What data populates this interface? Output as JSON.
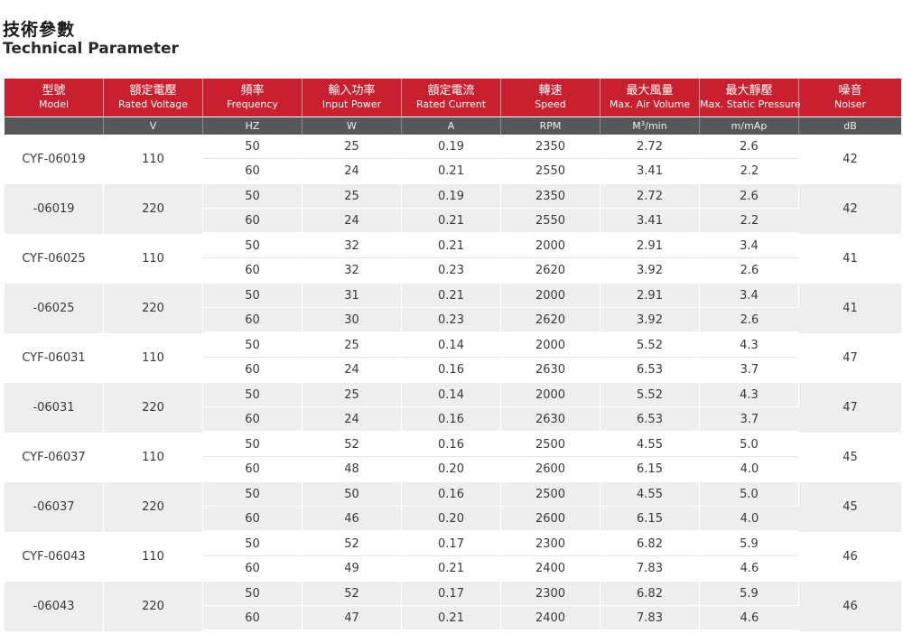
{
  "title_zh": "技術參數",
  "title_en": "Technical Parameter",
  "headers": [
    {
      "zh": "型號",
      "en": "Model"
    },
    {
      "zh": "額定電壓",
      "en": "Rated Voltage"
    },
    {
      "zh": "頻率",
      "en": "Frequency"
    },
    {
      "zh": "輸入功率",
      "en": "Input Power"
    },
    {
      "zh": "額定電流",
      "en": "Rated Current"
    },
    {
      "zh": "轉速",
      "en": "Speed"
    },
    {
      "zh": "最大風量",
      "en": "Max. Air Volume"
    },
    {
      "zh": "最大靜壓",
      "en": "Max. Static Pressure"
    },
    {
      "zh": "噪音",
      "en": "Noiser"
    }
  ],
  "units": {
    "model": "",
    "voltage": "V",
    "frequency": "HZ",
    "power": "W",
    "current": "A",
    "speed": "RPM",
    "air_volume_base": "M",
    "air_volume_sup": "3",
    "air_volume_tail": "/min",
    "pressure": "m/mAp",
    "noise": "dB"
  },
  "groups": [
    {
      "model": "CYF-06019",
      "voltage": "110",
      "noise": "42",
      "rows": [
        {
          "freq": "50",
          "power": "25",
          "current": "0.19",
          "speed": "2350",
          "air": "2.72",
          "pressure": "2.6"
        },
        {
          "freq": "60",
          "power": "24",
          "current": "0.21",
          "speed": "2550",
          "air": "3.41",
          "pressure": "2.2"
        }
      ]
    },
    {
      "model": "-06019",
      "voltage": "220",
      "noise": "42",
      "rows": [
        {
          "freq": "50",
          "power": "25",
          "current": "0.19",
          "speed": "2350",
          "air": "2.72",
          "pressure": "2.6"
        },
        {
          "freq": "60",
          "power": "24",
          "current": "0.21",
          "speed": "2550",
          "air": "3.41",
          "pressure": "2.2"
        }
      ]
    },
    {
      "model": "CYF-06025",
      "voltage": "110",
      "noise": "41",
      "rows": [
        {
          "freq": "50",
          "power": "32",
          "current": "0.21",
          "speed": "2000",
          "air": "2.91",
          "pressure": "3.4"
        },
        {
          "freq": "60",
          "power": "32",
          "current": "0.23",
          "speed": "2620",
          "air": "3.92",
          "pressure": "2.6"
        }
      ]
    },
    {
      "model": "-06025",
      "voltage": "220",
      "noise": "41",
      "rows": [
        {
          "freq": "50",
          "power": "31",
          "current": "0.21",
          "speed": "2000",
          "air": "2.91",
          "pressure": "3.4"
        },
        {
          "freq": "60",
          "power": "30",
          "current": "0.23",
          "speed": "2620",
          "air": "3.92",
          "pressure": "2.6"
        }
      ]
    },
    {
      "model": "CYF-06031",
      "voltage": "110",
      "noise": "47",
      "rows": [
        {
          "freq": "50",
          "power": "25",
          "current": "0.14",
          "speed": "2000",
          "air": "5.52",
          "pressure": "4.3"
        },
        {
          "freq": "60",
          "power": "24",
          "current": "0.16",
          "speed": "2630",
          "air": "6.53",
          "pressure": "3.7"
        }
      ]
    },
    {
      "model": "-06031",
      "voltage": "220",
      "noise": "47",
      "rows": [
        {
          "freq": "50",
          "power": "25",
          "current": "0.14",
          "speed": "2000",
          "air": "5.52",
          "pressure": "4.3"
        },
        {
          "freq": "60",
          "power": "24",
          "current": "0.16",
          "speed": "2630",
          "air": "6.53",
          "pressure": "3.7"
        }
      ]
    },
    {
      "model": "CYF-06037",
      "voltage": "110",
      "noise": "45",
      "rows": [
        {
          "freq": "50",
          "power": "52",
          "current": "0.16",
          "speed": "2500",
          "air": "4.55",
          "pressure": "5.0"
        },
        {
          "freq": "60",
          "power": "48",
          "current": "0.20",
          "speed": "2600",
          "air": "6.15",
          "pressure": "4.0"
        }
      ]
    },
    {
      "model": "-06037",
      "voltage": "220",
      "noise": "45",
      "rows": [
        {
          "freq": "50",
          "power": "50",
          "current": "0.16",
          "speed": "2500",
          "air": "4.55",
          "pressure": "5.0"
        },
        {
          "freq": "60",
          "power": "46",
          "current": "0.20",
          "speed": "2600",
          "air": "6.15",
          "pressure": "4.0"
        }
      ]
    },
    {
      "model": "CYF-06043",
      "voltage": "110",
      "noise": "46",
      "rows": [
        {
          "freq": "50",
          "power": "52",
          "current": "0.17",
          "speed": "2300",
          "air": "6.82",
          "pressure": "5.9"
        },
        {
          "freq": "60",
          "power": "49",
          "current": "0.21",
          "speed": "2400",
          "air": "7.83",
          "pressure": "4.6"
        }
      ]
    },
    {
      "model": "-06043",
      "voltage": "220",
      "noise": "46",
      "rows": [
        {
          "freq": "50",
          "power": "52",
          "current": "0.17",
          "speed": "2300",
          "air": "6.82",
          "pressure": "5.9"
        },
        {
          "freq": "60",
          "power": "47",
          "current": "0.21",
          "speed": "2400",
          "air": "7.83",
          "pressure": "4.6"
        }
      ]
    }
  ],
  "colors": {
    "header_red": "#c8202f",
    "unit_gray": "#555759",
    "stripe_gray": "#eeeeee"
  }
}
